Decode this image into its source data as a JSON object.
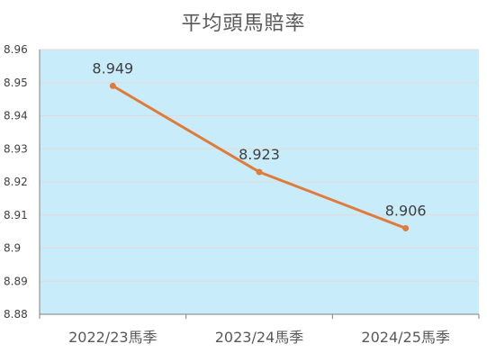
{
  "chart_data": {
    "type": "line",
    "title": "平均頭馬賠率",
    "categories": [
      "2022/23馬季",
      "2023/24馬季",
      "2024/25馬季"
    ],
    "series": [
      {
        "values": [
          8.949,
          8.923,
          8.906
        ]
      }
    ],
    "data_labels": [
      "8.949",
      "8.923",
      "8.906"
    ],
    "ylim": [
      8.88,
      8.96
    ],
    "y_ticks": [
      8.96,
      8.95,
      8.94,
      8.93,
      8.92,
      8.91,
      8.9,
      8.89,
      8.88
    ],
    "y_tick_labels": [
      "8.96",
      "8.95",
      "8.94",
      "8.93",
      "8.92",
      "8.91",
      "8.9",
      "8.89",
      "8.88"
    ],
    "grid": true,
    "legend": "none",
    "colors": {
      "line": "#E07B39",
      "plot_background": "#C9ECFB",
      "gridline": "#E8D8D8",
      "axis": "#7F7F7F",
      "text": "#595959"
    }
  }
}
